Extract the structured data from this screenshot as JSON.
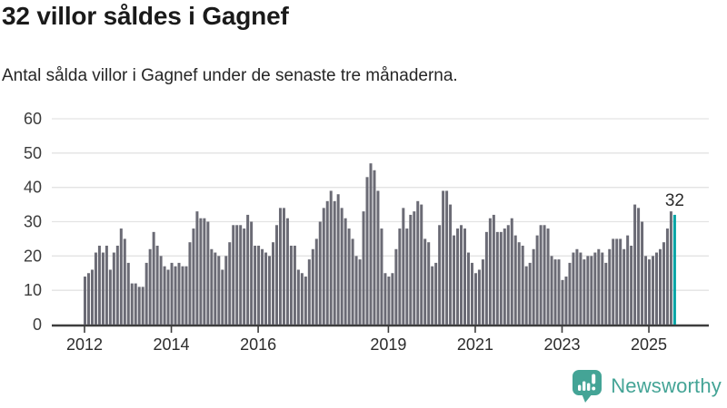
{
  "header": {
    "title": "32 villor såldes i Gagnef",
    "subtitle": "Antal sålda villor i Gagnef under de senaste tre månaderna."
  },
  "chart_data": {
    "type": "bar",
    "frequency": "monthly",
    "x_start": "2012-01",
    "x_end": "2025-08",
    "values": [
      14,
      15,
      16,
      21,
      23,
      21,
      23,
      16,
      21,
      23,
      28,
      25,
      18,
      12,
      12,
      11,
      11,
      18,
      22,
      27,
      23,
      20,
      17,
      16,
      18,
      17,
      18,
      17,
      17,
      24,
      28,
      33,
      31,
      31,
      30,
      22,
      21,
      20,
      16,
      20,
      24,
      29,
      29,
      29,
      28,
      32,
      30,
      23,
      23,
      22,
      21,
      20,
      24,
      29,
      34,
      34,
      31,
      23,
      23,
      16,
      15,
      14,
      19,
      22,
      25,
      30,
      34,
      36,
      39,
      36,
      38,
      34,
      31,
      28,
      25,
      20,
      19,
      33,
      43,
      47,
      45,
      39,
      28,
      15,
      14,
      15,
      22,
      28,
      34,
      28,
      32,
      33,
      36,
      35,
      25,
      24,
      17,
      18,
      29,
      39,
      39,
      35,
      26,
      28,
      29,
      28,
      21,
      18,
      15,
      16,
      19,
      27,
      31,
      32,
      27,
      27,
      28,
      29,
      31,
      26,
      24,
      23,
      17,
      18,
      22,
      26,
      29,
      29,
      28,
      20,
      19,
      19,
      13,
      14,
      18,
      21,
      22,
      21,
      19,
      20,
      20,
      21,
      22,
      21,
      18,
      22,
      25,
      25,
      25,
      22,
      26,
      23,
      35,
      34,
      30,
      20,
      19,
      20,
      21,
      22,
      24,
      28,
      33,
      32
    ],
    "highlight": {
      "index": 163,
      "value": 32,
      "label": "32"
    },
    "yticks": [
      0,
      10,
      20,
      30,
      40,
      50,
      60
    ],
    "ylim": [
      0,
      60
    ],
    "xtick_years": [
      2012,
      2014,
      2016,
      2019,
      2021,
      2023,
      2025
    ],
    "grid": true,
    "legend": "none"
  },
  "colors": {
    "bar": "#6b6b75",
    "highlight": "#00a3a4",
    "brand": "#44a496",
    "grid": "#e3e3e3",
    "axis": "#3d3d3d",
    "title": "#1a1a1a",
    "text": "#262626"
  },
  "footer": {
    "brand": "Newsworthy",
    "logo_icon": "speech-bubble-bar-chart-exclamation"
  }
}
